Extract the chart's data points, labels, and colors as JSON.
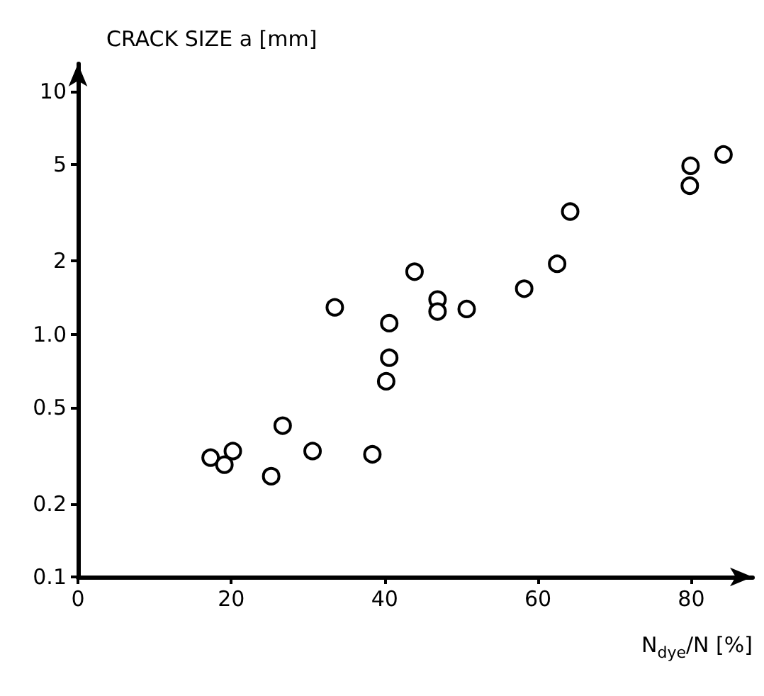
{
  "chart_data": {
    "type": "scatter",
    "xlabel": "N$_{dye}$/N [%]",
    "ylabel": "CRACK SIZE a [mm]",
    "x": [
      17.3,
      19.1,
      20.2,
      25.2,
      26.7,
      30.6,
      33.5,
      38.4,
      40.2,
      40.6,
      40.6,
      43.9,
      46.9,
      46.9,
      50.7,
      58.2,
      62.5,
      64.2,
      79.8,
      79.9,
      84.2
    ],
    "series": [
      {
        "color": "#000000",
        "values": [
          0.31,
          0.29,
          0.33,
          0.26,
          0.42,
          0.33,
          1.29,
          0.32,
          0.64,
          0.8,
          1.11,
          1.81,
          1.39,
          1.24,
          1.27,
          1.54,
          1.95,
          3.2,
          4.09,
          4.94,
          5.5
        ]
      }
    ],
    "xlim": [
      0,
      88
    ],
    "xticks": [
      0,
      20,
      40,
      60,
      80
    ],
    "ylim": [
      0.1,
      13
    ],
    "yticks": [
      0.1,
      0.2,
      0.5,
      {
        "value": 1,
        "label": "1.0"
      },
      2,
      5,
      10
    ],
    "log": "y",
    "grid": false,
    "marker": "circle"
  }
}
